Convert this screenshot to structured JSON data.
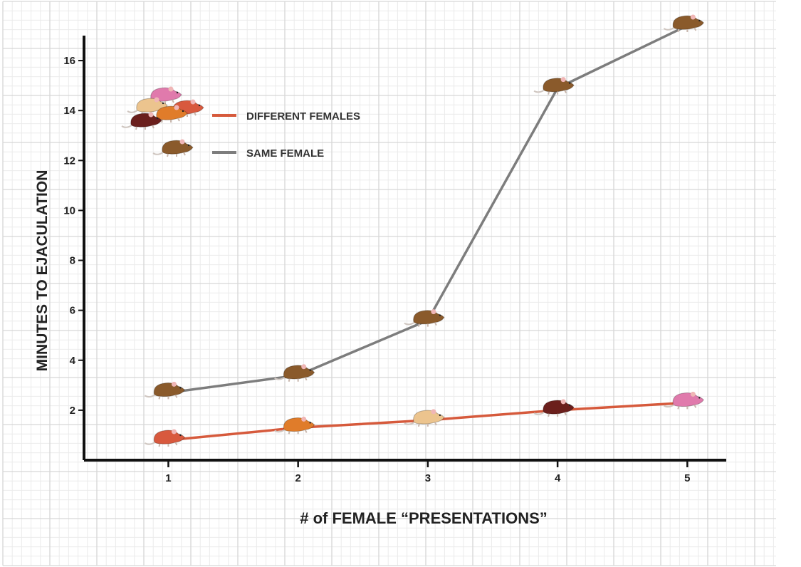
{
  "chart_data": {
    "type": "line",
    "xlabel": "# of FEMALE “PRESENTATIONS”",
    "ylabel": "MINUTES TO EJACULATION",
    "x": [
      1,
      2,
      3,
      4,
      5
    ],
    "x_ticks": [
      "1",
      "2",
      "3",
      "4",
      "5"
    ],
    "y_ticks": [
      "2",
      "4",
      "6",
      "8",
      "10",
      "12",
      "14",
      "16"
    ],
    "xlim": [
      0.35,
      5.3
    ],
    "ylim": [
      0,
      17
    ],
    "grid": true,
    "legend_position": "top-left",
    "series": [
      {
        "name": "DIFFERENT FEMALES",
        "values": [
          0.8,
          1.3,
          1.6,
          2.0,
          2.3
        ],
        "line_color": "#d65a3c",
        "marker_colors": [
          "#d8593e",
          "#e07c2a",
          "#ecc48e",
          "#6b1f1c",
          "#e07aac"
        ]
      },
      {
        "name": "SAME FEMALE",
        "values": [
          2.7,
          3.4,
          5.6,
          14.9,
          17.4
        ],
        "line_color": "#7d7d7d",
        "marker_colors": [
          "#8a5a2b",
          "#8a5a2b",
          "#8a5a2b",
          "#8a5a2b",
          "#8a5a2b"
        ]
      }
    ],
    "legend_icon_colors": {
      "different_females": [
        "#e07aac",
        "#ecc48e",
        "#d8593e",
        "#e07c2a",
        "#6b1f1c"
      ],
      "same_female": [
        "#8a5a2b"
      ]
    }
  }
}
